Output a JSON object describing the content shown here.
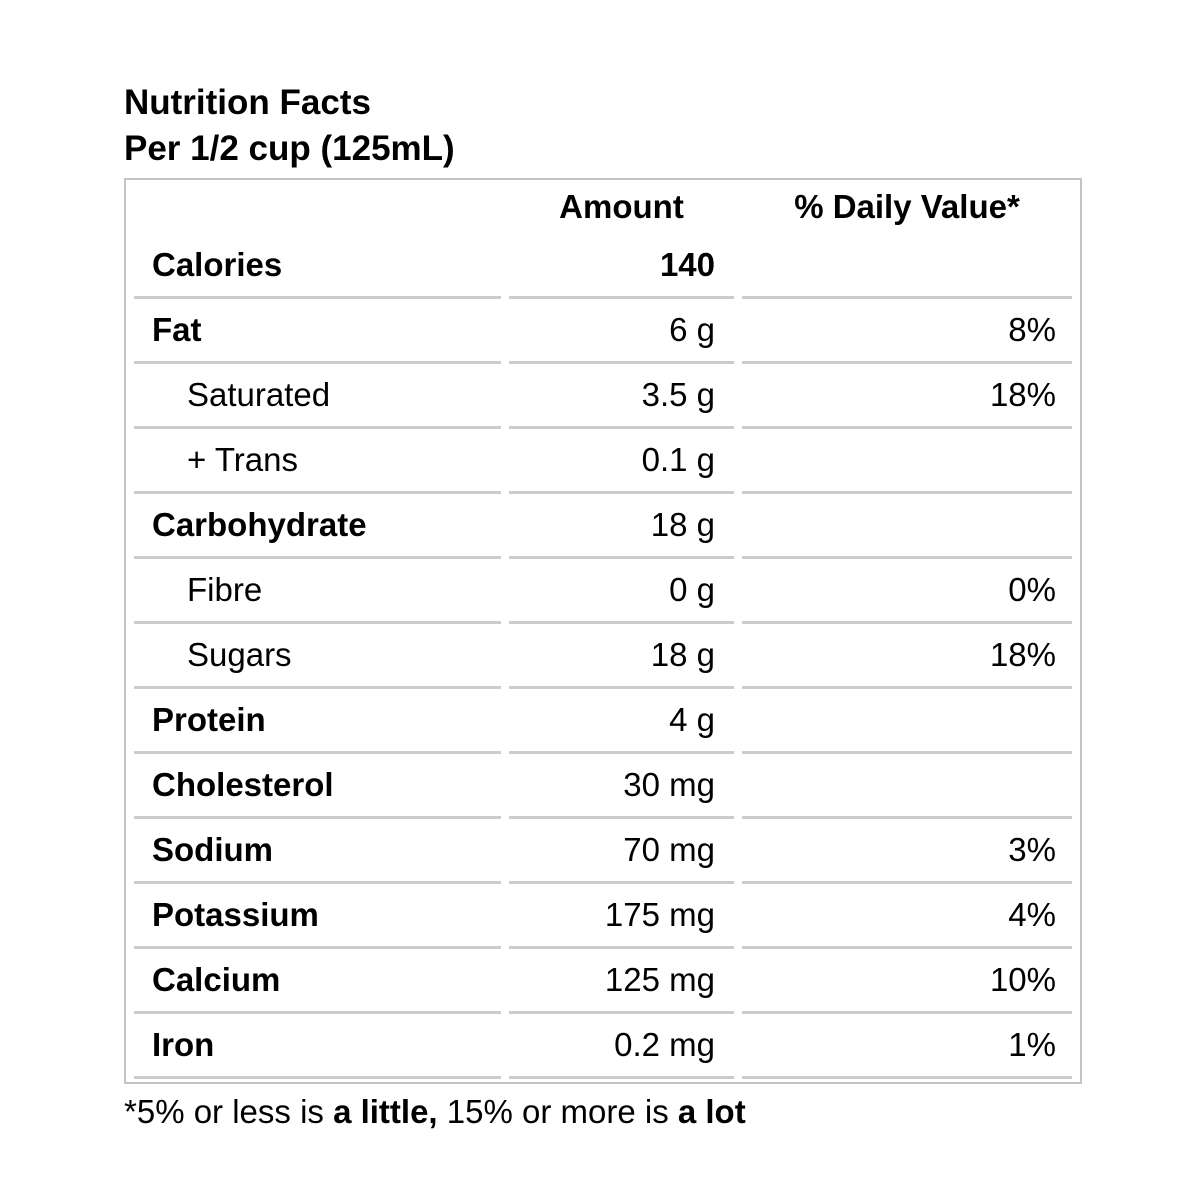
{
  "header": {
    "title": "Nutrition Facts",
    "serving": "Per 1/2 cup (125mL)"
  },
  "table": {
    "columns": [
      "",
      "Amount",
      "% Daily Value*"
    ],
    "rows": [
      {
        "label": "Calories",
        "amount": "140",
        "daily_value": "",
        "label_bold": true,
        "amount_bold": true,
        "indent": false
      },
      {
        "label": "Fat",
        "amount": "6 g",
        "daily_value": "8%",
        "label_bold": true,
        "amount_bold": false,
        "indent": false
      },
      {
        "label": "Saturated",
        "amount": "3.5 g",
        "daily_value": "18%",
        "label_bold": false,
        "amount_bold": false,
        "indent": true
      },
      {
        "label": "+ Trans",
        "amount": "0.1 g",
        "daily_value": "",
        "label_bold": false,
        "amount_bold": false,
        "indent": true
      },
      {
        "label": "Carbohydrate",
        "amount": "18 g",
        "daily_value": "",
        "label_bold": true,
        "amount_bold": false,
        "indent": false
      },
      {
        "label": "Fibre",
        "amount": "0 g",
        "daily_value": "0%",
        "label_bold": false,
        "amount_bold": false,
        "indent": true
      },
      {
        "label": "Sugars",
        "amount": "18 g",
        "daily_value": "18%",
        "label_bold": false,
        "amount_bold": false,
        "indent": true
      },
      {
        "label": "Protein",
        "amount": "4 g",
        "daily_value": "",
        "label_bold": true,
        "amount_bold": false,
        "indent": false
      },
      {
        "label": "Cholesterol",
        "amount": "30 mg",
        "daily_value": "",
        "label_bold": true,
        "amount_bold": false,
        "indent": false
      },
      {
        "label": "Sodium",
        "amount": "70 mg",
        "daily_value": "3%",
        "label_bold": true,
        "amount_bold": false,
        "indent": false
      },
      {
        "label": "Potassium",
        "amount": "175 mg",
        "daily_value": "4%",
        "label_bold": true,
        "amount_bold": false,
        "indent": false
      },
      {
        "label": "Calcium",
        "amount": "125 mg",
        "daily_value": "10%",
        "label_bold": true,
        "amount_bold": false,
        "indent": false
      },
      {
        "label": "Iron",
        "amount": "0.2 mg",
        "daily_value": "1%",
        "label_bold": true,
        "amount_bold": false,
        "indent": false
      }
    ]
  },
  "footnote": {
    "parts": [
      {
        "text": "*5% or less is ",
        "bold": false
      },
      {
        "text": "a little,",
        "bold": true
      },
      {
        "text": " 15% or more is ",
        "bold": false
      },
      {
        "text": "a lot",
        "bold": true
      }
    ]
  },
  "colors": {
    "text": "#000000",
    "separator_line": "#cccccc",
    "outer_border": "#c4c4c4",
    "background": "#ffffff"
  }
}
